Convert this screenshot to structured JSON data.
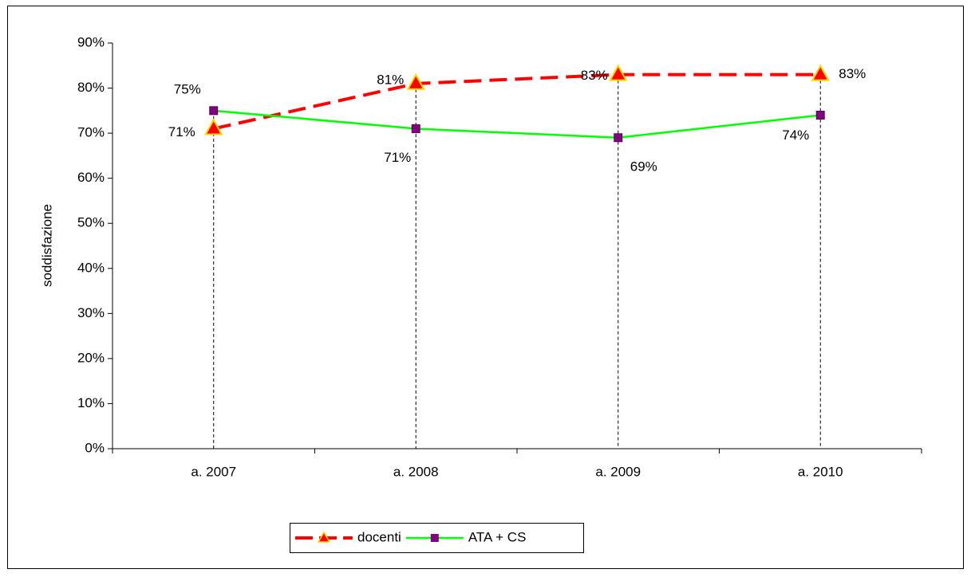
{
  "chart_data": {
    "type": "line",
    "y_label": "soddisfazione",
    "categories": [
      "a. 2007",
      "a. 2008",
      "a. 2009",
      "a. 2010"
    ],
    "series": [
      {
        "name": "docenti",
        "color": "#ff0000",
        "values": [
          71,
          81,
          83,
          83
        ],
        "value_labels": [
          "71%",
          "81%",
          "83%",
          "83%"
        ]
      },
      {
        "name": "ATA + CS",
        "color": "#00ff00",
        "values": [
          75,
          71,
          69,
          74
        ],
        "value_labels": [
          "75%",
          "71%",
          "69%",
          "74%"
        ]
      }
    ],
    "ylim": [
      0,
      90
    ],
    "yticks": [
      {
        "value": 0,
        "label": "0%"
      },
      {
        "value": 10,
        "label": "10%"
      },
      {
        "value": 20,
        "label": "20%"
      },
      {
        "value": 30,
        "label": "30%"
      },
      {
        "value": 40,
        "label": "40%"
      },
      {
        "value": 50,
        "label": "50%"
      },
      {
        "value": 60,
        "label": "60%"
      },
      {
        "value": 70,
        "label": "70%"
      },
      {
        "value": 80,
        "label": "80%"
      },
      {
        "value": 90,
        "label": "90%"
      }
    ],
    "grid": false,
    "legend": "bottom"
  }
}
